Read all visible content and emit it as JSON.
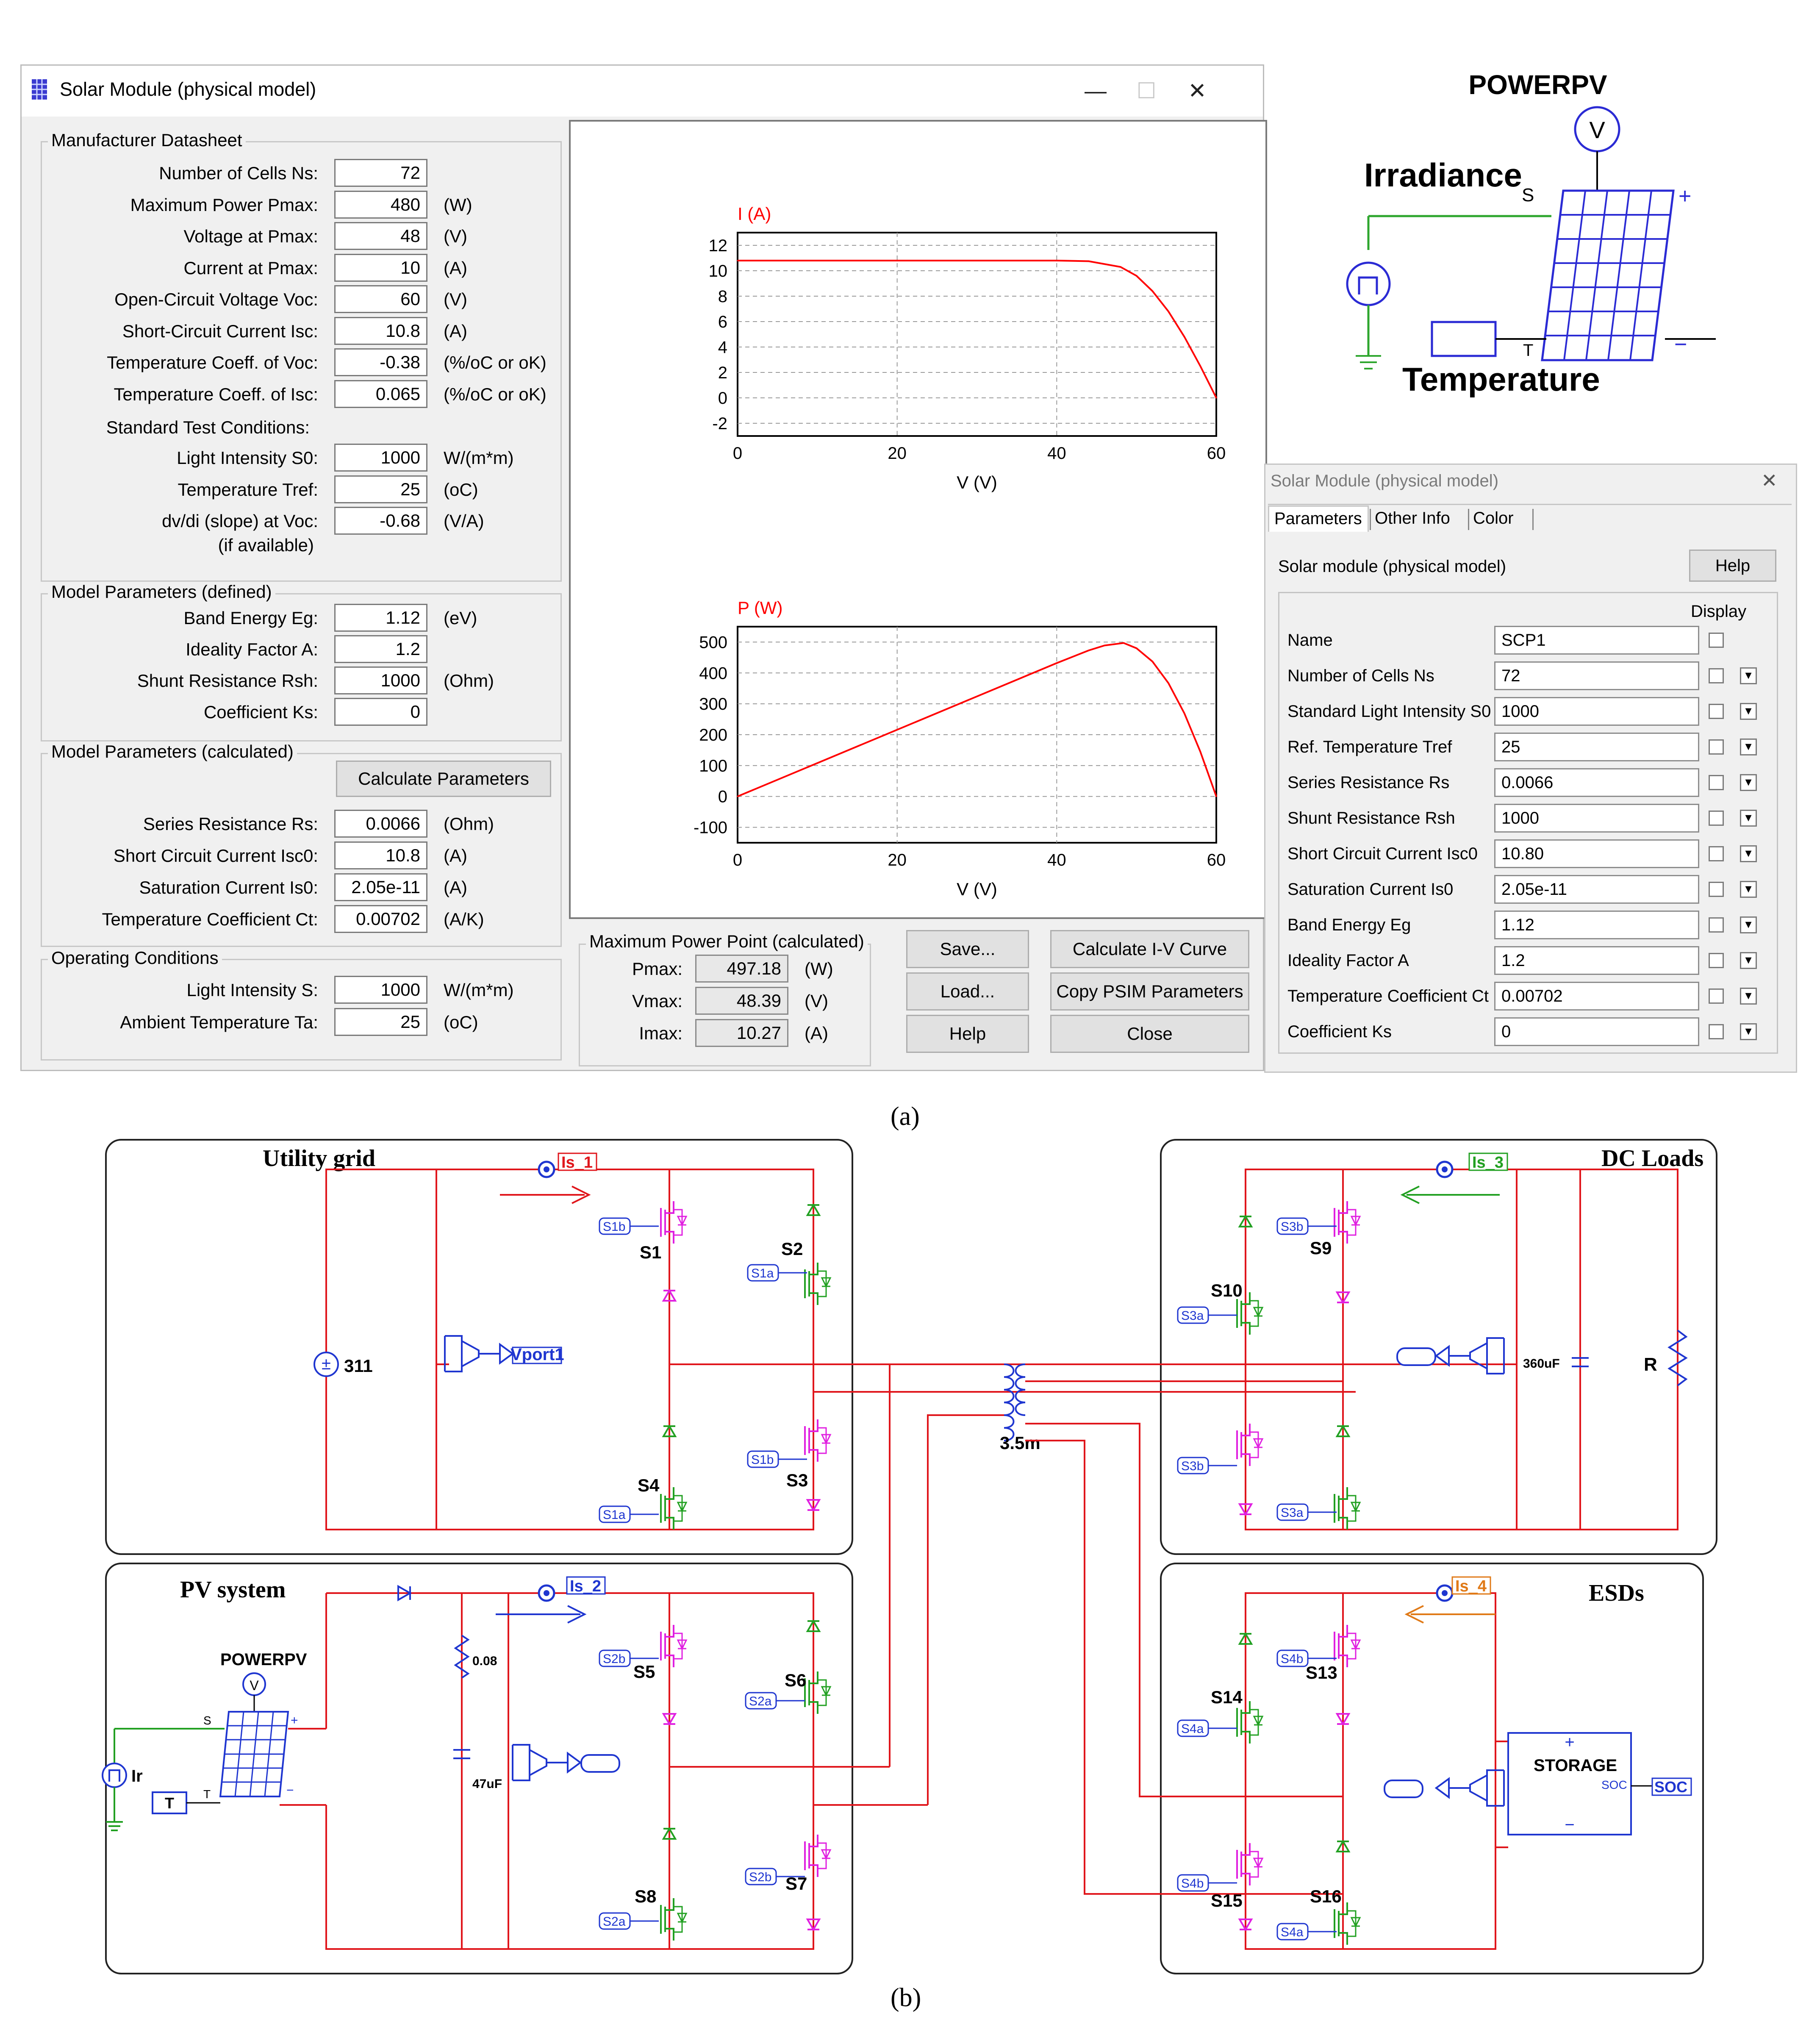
{
  "window": {
    "title": "Solar Module (physical model)",
    "controls": {
      "minimize": "—",
      "maximize": "☐",
      "close": "✕"
    }
  },
  "manufacturer": {
    "group_label": "Manufacturer Datasheet",
    "rows": [
      {
        "label": "Number of Cells Ns:",
        "value": "72",
        "unit": ""
      },
      {
        "label": "Maximum Power Pmax:",
        "value": "480",
        "unit": "(W)"
      },
      {
        "label": "Voltage at Pmax:",
        "value": "48",
        "unit": "(V)"
      },
      {
        "label": "Current at Pmax:",
        "value": "10",
        "unit": "(A)"
      },
      {
        "label": "Open-Circuit Voltage Voc:",
        "value": "60",
        "unit": "(V)"
      },
      {
        "label": "Short-Circuit Current Isc:",
        "value": "10.8",
        "unit": "(A)"
      },
      {
        "label": "Temperature Coeff. of Voc:",
        "value": "-0.38",
        "unit": "(%/oC or oK)"
      },
      {
        "label": "Temperature Coeff. of Isc:",
        "value": "0.065",
        "unit": "(%/oC or oK)"
      }
    ],
    "stc_label": "Standard Test Conditions:",
    "stc_rows": [
      {
        "label": "Light Intensity S0:",
        "value": "1000",
        "unit": "W/(m*m)"
      },
      {
        "label": "Temperature Tref:",
        "value": "25",
        "unit": "(oC)"
      },
      {
        "label": "dv/di (slope) at Voc:",
        "value": "-0.68",
        "unit": "(V/A)"
      }
    ],
    "slope_note": "(if available)"
  },
  "model_defined": {
    "group_label": "Model Parameters (defined)",
    "rows": [
      {
        "label": "Band Energy Eg:",
        "value": "1.12",
        "unit": "(eV)"
      },
      {
        "label": "Ideality Factor A:",
        "value": "1.2",
        "unit": ""
      },
      {
        "label": "Shunt Resistance Rsh:",
        "value": "1000",
        "unit": "(Ohm)"
      },
      {
        "label": "Coefficient Ks:",
        "value": "0",
        "unit": ""
      }
    ]
  },
  "model_calculated": {
    "group_label": "Model Parameters (calculated)",
    "button": "Calculate Parameters",
    "rows": [
      {
        "label": "Series Resistance Rs:",
        "value": "0.0066",
        "unit": "(Ohm)"
      },
      {
        "label": "Short Circuit Current Isc0:",
        "value": "10.8",
        "unit": "(A)"
      },
      {
        "label": "Saturation Current Is0:",
        "value": "2.05e-11",
        "unit": "(A)"
      },
      {
        "label": "Temperature Coefficient Ct:",
        "value": "0.00702",
        "unit": "(A/K)"
      }
    ]
  },
  "operating": {
    "group_label": "Operating Conditions",
    "rows": [
      {
        "label": "Light Intensity S:",
        "value": "1000",
        "unit": "W/(m*m)"
      },
      {
        "label": "Ambient Temperature Ta:",
        "value": "25",
        "unit": "(oC)"
      }
    ]
  },
  "mpp": {
    "group_label": "Maximum Power Point (calculated)",
    "rows": [
      {
        "label": "Pmax:",
        "value": "497.18",
        "unit": "(W)"
      },
      {
        "label": "Vmax:",
        "value": "48.39",
        "unit": "(V)"
      },
      {
        "label": "Imax:",
        "value": "10.27",
        "unit": "(A)"
      }
    ]
  },
  "buttons": {
    "save": "Save...",
    "load": "Load...",
    "help": "Help",
    "calc_iv": "Calculate I-V Curve",
    "copy_psim": "Copy PSIM Parameters",
    "close": "Close"
  },
  "chart_data": [
    {
      "type": "line",
      "title": "I (A)",
      "xlabel": "V (V)",
      "ylabel": "I (A)",
      "xlim": [
        0,
        60
      ],
      "ylim": [
        -3,
        13
      ],
      "grid": true,
      "color": "#ff0000",
      "xticks": [
        "0",
        "20",
        "40",
        "60"
      ],
      "yticks": [
        "12",
        "10",
        "8",
        "6",
        "4",
        "2",
        "0",
        "-2"
      ],
      "series": [
        {
          "name": "I-V",
          "x": [
            0,
            20,
            40,
            44,
            48,
            50,
            52,
            54,
            56,
            58,
            60
          ],
          "y": [
            10.8,
            10.8,
            10.8,
            10.75,
            10.3,
            9.6,
            8.4,
            6.8,
            4.8,
            2.5,
            0
          ]
        }
      ]
    },
    {
      "type": "line",
      "title": "P (W)",
      "xlabel": "V (V)",
      "ylabel": "P (W)",
      "xlim": [
        0,
        60
      ],
      "ylim": [
        -150,
        550
      ],
      "grid": true,
      "color": "#ff0000",
      "xticks": [
        "0",
        "20",
        "40",
        "60"
      ],
      "yticks": [
        "500",
        "400",
        "300",
        "200",
        "100",
        "0",
        "-100"
      ],
      "series": [
        {
          "name": "P-V",
          "x": [
            0,
            20,
            40,
            44,
            46,
            48.39,
            50,
            52,
            54,
            56,
            58,
            60
          ],
          "y": [
            0,
            216,
            432,
            473,
            489,
            497.18,
            480,
            437,
            367,
            269,
            145,
            0
          ]
        }
      ]
    }
  ],
  "powerpv_symbol": {
    "title": "POWERPV",
    "voltmeter": "V",
    "irradiance": "Irradiance",
    "s_port": "S",
    "t_port": "T",
    "plus": "+",
    "minus": "−",
    "temperature": "Temperature"
  },
  "param_panel": {
    "title": "Solar Module (physical model)",
    "close": "✕",
    "tabs": [
      "Parameters",
      "Other Info",
      "Color"
    ],
    "subtitle": "Solar module (physical model)",
    "help": "Help",
    "display_header": "Display",
    "dropdown_glyph": "▾",
    "rows": [
      {
        "label": "Name",
        "value": "SCP1"
      },
      {
        "label": "Number of Cells Ns",
        "value": "72"
      },
      {
        "label": "Standard Light Intensity S0",
        "value": "1000"
      },
      {
        "label": "Ref. Temperature Tref",
        "value": "25"
      },
      {
        "label": "Series Resistance Rs",
        "value": "0.0066"
      },
      {
        "label": "Shunt Resistance Rsh",
        "value": "1000"
      },
      {
        "label": "Short Circuit Current Isc0",
        "value": "10.80"
      },
      {
        "label": "Saturation Current Is0",
        "value": "2.05e-11"
      },
      {
        "label": "Band Energy Eg",
        "value": "1.12"
      },
      {
        "label": "Ideality Factor A",
        "value": "1.2"
      },
      {
        "label": "Temperature Coefficient Ct",
        "value": "0.00702"
      },
      {
        "label": "Coefficient Ks",
        "value": "0"
      }
    ]
  },
  "captions": {
    "a": "(a)",
    "b": "(b)"
  },
  "schematic": {
    "sections": {
      "utility": "Utility grid",
      "dc_loads": "DC Loads",
      "pv": "PV system",
      "esds": "ESDs"
    },
    "sources": {
      "grid_voltage": "311",
      "vport": "Vport1"
    },
    "sensors": {
      "is1": "Is_1",
      "is2": "Is_2",
      "is3": "Is_3",
      "is4": "Is_4"
    },
    "switches": [
      "S1",
      "S2",
      "S3",
      "S4",
      "S5",
      "S6",
      "S7",
      "S8",
      "S9",
      "S10",
      "S13",
      "S14",
      "S15",
      "S16"
    ],
    "gate_tags": {
      "s1a": "S1a",
      "s1b": "S1b",
      "s2a": "S2a",
      "s2b": "S2b",
      "s3a": "S3a",
      "s3b": "S3b",
      "s4a": "S4a",
      "s4b": "S4b"
    },
    "components": {
      "transformer": "3.5m",
      "cap_dc": "360uF",
      "load_r": "R",
      "pv_r": "0.08",
      "pv_c": "47uF",
      "powerpv": "POWERPV",
      "v": "V",
      "ir": "Ir",
      "t": "T",
      "s": "S",
      "t_small": "T",
      "plus": "+",
      "minus": "−"
    },
    "storage": {
      "label": "STORAGE",
      "soc_port": "SOC",
      "soc_tag": "SOC",
      "plus": "+",
      "minus": "−"
    }
  }
}
